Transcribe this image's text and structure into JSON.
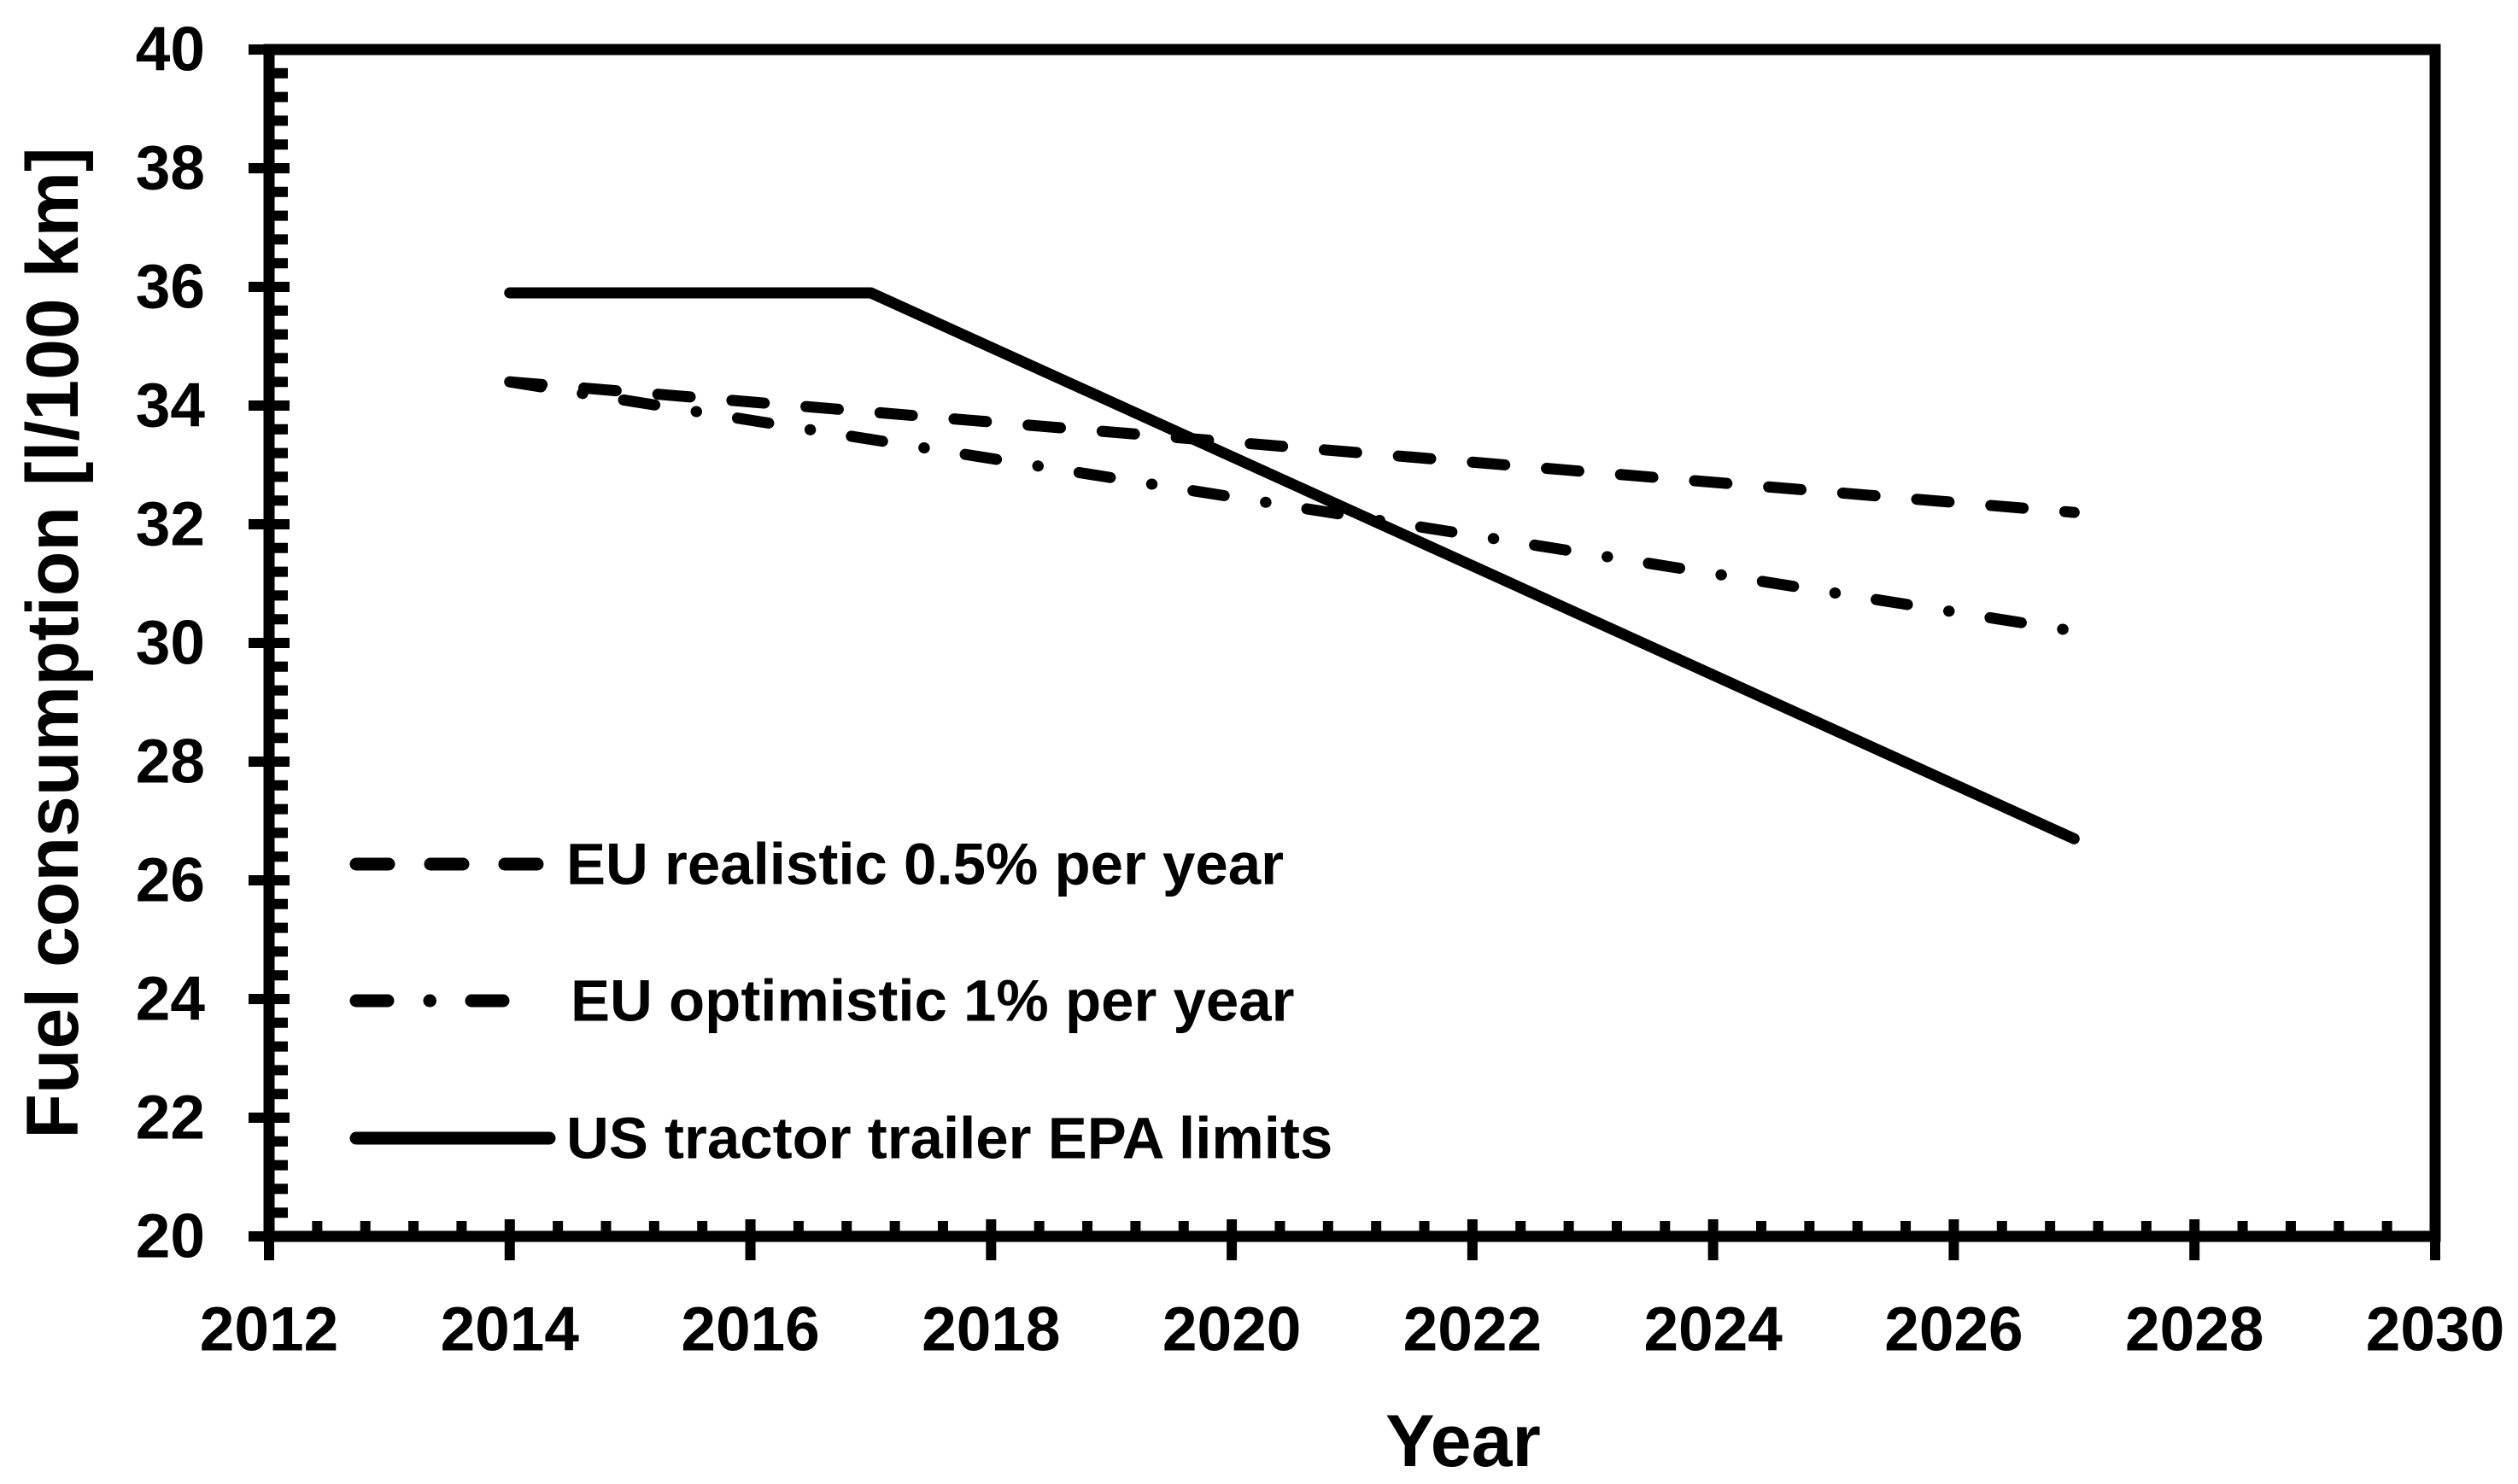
{
  "figure": {
    "background_color": "#ffffff",
    "ink_color": "#000000"
  },
  "chart_data": {
    "type": "line",
    "title": "",
    "xlabel": "Year",
    "ylabel": "Fuel consumption [l/100 km]",
    "xlim": [
      2012,
      2030
    ],
    "ylim": [
      20,
      40
    ],
    "x_major_ticks": [
      2012,
      2014,
      2016,
      2018,
      2020,
      2022,
      2024,
      2026,
      2028,
      2030
    ],
    "y_major_ticks": [
      20,
      22,
      24,
      26,
      28,
      30,
      32,
      34,
      36,
      38,
      40
    ],
    "x_minor_step": 0.4,
    "y_minor_step": 0.4,
    "grid": "off",
    "legend_position": "inside-lower-left",
    "series": [
      {
        "name": "EU realistic 0.5% per year",
        "style": "dashed",
        "x": [
          2014,
          2027
        ],
        "y": [
          34.4,
          32.2
        ]
      },
      {
        "name": "EU optimistic 1% per year",
        "style": "dash-dot",
        "x": [
          2014,
          2027
        ],
        "y": [
          34.4,
          30.2
        ]
      },
      {
        "name": "US tractor trailer EPA limits",
        "style": "solid",
        "x": [
          2014,
          2017,
          2027
        ],
        "y": [
          35.9,
          35.9,
          26.7
        ]
      }
    ]
  }
}
